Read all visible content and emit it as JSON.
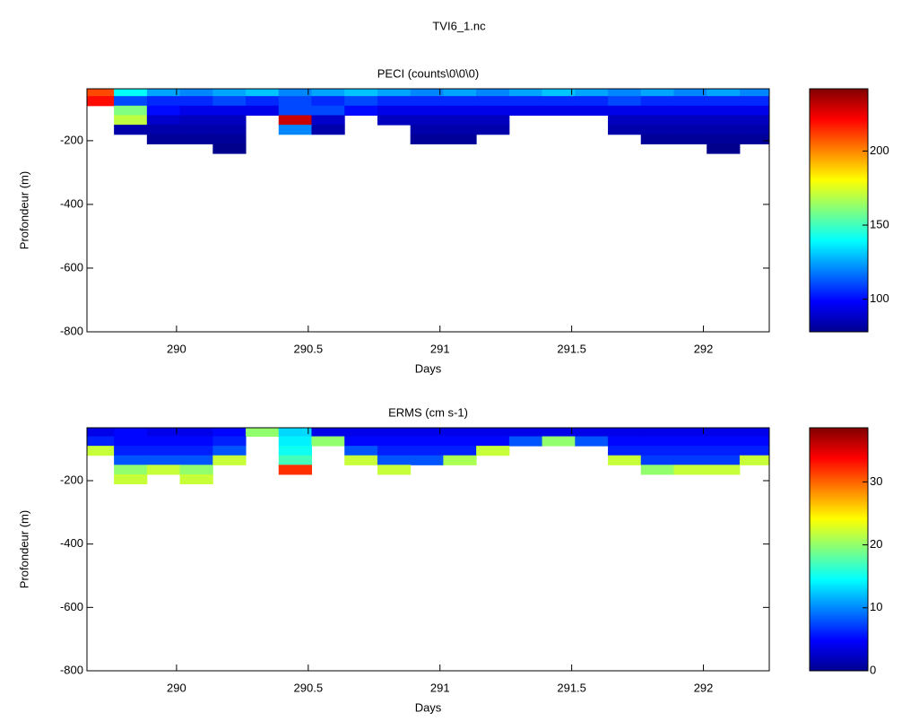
{
  "title": "TVI6_1.nc",
  "chart_data": [
    {
      "type": "heatmap",
      "title": "PECI (counts\\0\\0\\0)",
      "xlabel": "Days",
      "ylabel": "Profondeur (m)",
      "x": [
        289.7,
        289.825,
        289.95,
        290.075,
        290.2,
        290.325,
        290.45,
        290.575,
        290.7,
        290.825,
        290.95,
        291.075,
        291.2,
        291.325,
        291.45,
        291.575,
        291.7,
        291.825,
        291.95,
        292.075,
        292.2
      ],
      "y": [
        -45,
        -75,
        -105,
        -135,
        -165,
        -195,
        -225
      ],
      "values": [
        [
          210,
          140,
          125,
          120,
          125,
          130,
          120,
          125,
          130,
          125,
          120,
          125,
          120,
          125,
          130,
          125,
          120,
          125,
          120,
          125,
          120
        ],
        [
          220,
          110,
          105,
          105,
          110,
          105,
          110,
          105,
          110,
          105,
          105,
          105,
          105,
          105,
          105,
          105,
          110,
          105,
          105,
          105,
          105
        ],
        [
          null,
          160,
          100,
          95,
          95,
          95,
          110,
          110,
          100,
          95,
          95,
          95,
          95,
          95,
          95,
          95,
          95,
          95,
          95,
          95,
          95
        ],
        [
          null,
          170,
          90,
          88,
          88,
          null,
          230,
          90,
          null,
          88,
          88,
          88,
          88,
          null,
          null,
          null,
          88,
          88,
          88,
          88,
          88
        ],
        [
          null,
          85,
          85,
          85,
          85,
          null,
          120,
          85,
          null,
          null,
          85,
          85,
          85,
          null,
          null,
          null,
          85,
          85,
          85,
          85,
          85
        ],
        [
          null,
          null,
          82,
          82,
          82,
          null,
          null,
          null,
          null,
          null,
          82,
          82,
          null,
          null,
          null,
          null,
          null,
          82,
          82,
          82,
          82
        ],
        [
          null,
          null,
          null,
          null,
          80,
          null,
          null,
          null,
          null,
          null,
          null,
          null,
          null,
          null,
          null,
          null,
          null,
          null,
          null,
          80,
          null
        ]
      ],
      "xlim": [
        289.66,
        292.25
      ],
      "xticks": [
        290,
        290.5,
        291,
        291.5,
        292
      ],
      "ylim": [
        -800,
        -37
      ],
      "yticks": [
        -800,
        -600,
        -400,
        -200
      ],
      "clim": [
        78,
        242
      ],
      "cticks": [
        100,
        150,
        200
      ],
      "colormap": "jet"
    },
    {
      "type": "heatmap",
      "title": "ERMS (cm s-1)",
      "xlabel": "Days",
      "ylabel": "Profondeur (m)",
      "x": [
        289.7,
        289.825,
        289.95,
        290.075,
        290.2,
        290.325,
        290.45,
        290.575,
        290.7,
        290.825,
        290.95,
        291.075,
        291.2,
        291.325,
        291.45,
        291.575,
        291.7,
        291.825,
        291.95,
        292.075,
        292.2
      ],
      "y": [
        -45,
        -75,
        -105,
        -135,
        -165,
        -195
      ],
      "values": [
        [
          4,
          5,
          4,
          4,
          5,
          20,
          13,
          4,
          4,
          4,
          4,
          4,
          4,
          4,
          4,
          4,
          4,
          4,
          4,
          4,
          4
        ],
        [
          6,
          5,
          5,
          5,
          6,
          null,
          14,
          20,
          5,
          5,
          5,
          5,
          5,
          8,
          20,
          8,
          5,
          5,
          5,
          5,
          5
        ],
        [
          22,
          6,
          6,
          6,
          8,
          null,
          15,
          null,
          8,
          6,
          6,
          6,
          22,
          null,
          null,
          null,
          6,
          6,
          6,
          6,
          6
        ],
        [
          null,
          8,
          8,
          8,
          22,
          null,
          17,
          null,
          22,
          8,
          8,
          21,
          null,
          null,
          null,
          null,
          22,
          7,
          7,
          7,
          22
        ],
        [
          null,
          20,
          22,
          20,
          null,
          null,
          32,
          null,
          null,
          22,
          null,
          null,
          null,
          null,
          null,
          null,
          null,
          20,
          22,
          22,
          null
        ],
        [
          null,
          22,
          null,
          22,
          null,
          null,
          null,
          null,
          null,
          null,
          null,
          null,
          null,
          null,
          null,
          null,
          null,
          null,
          null,
          null,
          null
        ]
      ],
      "xlim": [
        289.66,
        292.25
      ],
      "xticks": [
        290,
        290.5,
        291,
        291.5,
        292
      ],
      "ylim": [
        -800,
        -33
      ],
      "yticks": [
        -800,
        -600,
        -400,
        -200
      ],
      "clim": [
        0,
        38.6
      ],
      "cticks": [
        0,
        10,
        20,
        30
      ],
      "colormap": "jet"
    }
  ]
}
